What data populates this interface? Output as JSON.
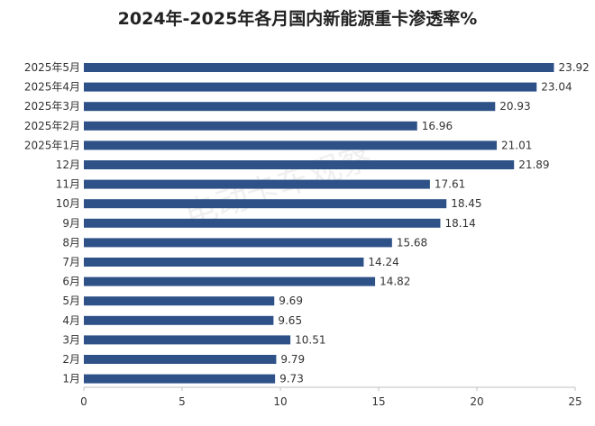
{
  "chart_data": {
    "type": "bar",
    "orientation": "horizontal",
    "title": "2024年-2025年各月国内新能源重卡渗透率%",
    "watermark": "电动卡车观察",
    "categories": [
      "2025年5月",
      "2025年4月",
      "2025年3月",
      "2025年2月",
      "2025年1月",
      "12月",
      "11月",
      "10月",
      "9月",
      "8月",
      "7月",
      "6月",
      "5月",
      "4月",
      "3月",
      "2月",
      "1月"
    ],
    "values": [
      23.92,
      23.04,
      20.93,
      16.96,
      21.01,
      21.89,
      17.61,
      18.45,
      18.14,
      15.68,
      14.24,
      14.82,
      9.69,
      9.65,
      10.51,
      9.79,
      9.73
    ],
    "value_labels": [
      "23.92",
      "23.04",
      "20.93",
      "16.96",
      "21.01",
      "21.89",
      "17.61",
      "18.45",
      "18.14",
      "15.68",
      "14.24",
      "14.82",
      "9.69",
      "9.65",
      "10.51",
      "9.79",
      "9.73"
    ],
    "xlim": [
      0,
      25
    ],
    "xticks": [
      "0",
      "5",
      "10",
      "15",
      "20",
      "25"
    ],
    "bar_color": "#2e5288",
    "grid": false,
    "legend": "none"
  }
}
